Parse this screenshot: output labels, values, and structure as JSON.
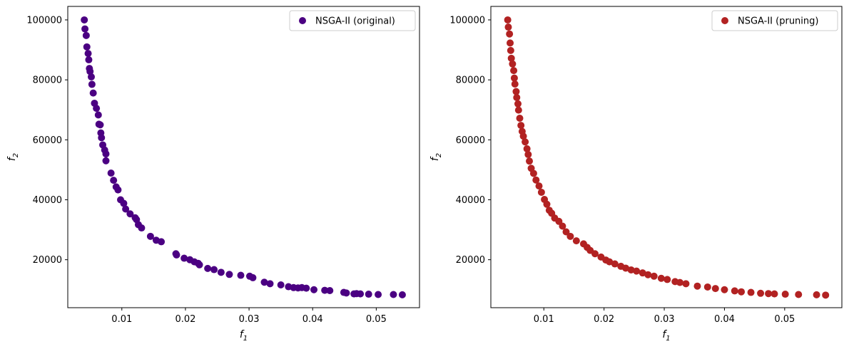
{
  "chart_data": [
    {
      "type": "scatter",
      "title": "",
      "xlabel_base": "f",
      "xlabel_sub": "1",
      "ylabel_base": "f",
      "ylabel_sub": "2",
      "xlim": [
        0.0015,
        0.0568
      ],
      "ylim": [
        4000,
        104500
      ],
      "xticks": [
        0.01,
        0.02,
        0.03,
        0.04,
        0.05
      ],
      "xtick_labels": [
        "0.01",
        "0.02",
        "0.03",
        "0.04",
        "0.05"
      ],
      "yticks": [
        20000,
        40000,
        60000,
        80000,
        100000
      ],
      "ytick_labels": [
        "20000",
        "40000",
        "60000",
        "80000",
        "100000"
      ],
      "legend_position": "top-right",
      "series": [
        {
          "name": "NSGA-II (original)",
          "color": "#4b0082",
          "points": [
            [
              0.0041,
              100000
            ],
            [
              0.0042,
              97000
            ],
            [
              0.0044,
              94800
            ],
            [
              0.0045,
              91000
            ],
            [
              0.0047,
              88800
            ],
            [
              0.0048,
              86700
            ],
            [
              0.0049,
              83800
            ],
            [
              0.005,
              82800
            ],
            [
              0.0052,
              81000
            ],
            [
              0.0053,
              78500
            ],
            [
              0.0055,
              75600
            ],
            [
              0.0057,
              72200
            ],
            [
              0.006,
              70500
            ],
            [
              0.0063,
              68300
            ],
            [
              0.0064,
              65200
            ],
            [
              0.0066,
              65000
            ],
            [
              0.0067,
              62300
            ],
            [
              0.0068,
              60700
            ],
            [
              0.007,
              58300
            ],
            [
              0.0073,
              56600
            ],
            [
              0.0075,
              55300
            ],
            [
              0.0075,
              53000
            ],
            [
              0.0083,
              48900
            ],
            [
              0.0087,
              46500
            ],
            [
              0.0091,
              44300
            ],
            [
              0.0094,
              43300
            ],
            [
              0.0098,
              40000
            ],
            [
              0.0103,
              38800
            ],
            [
              0.0106,
              36900
            ],
            [
              0.0113,
              35300
            ],
            [
              0.0121,
              34000
            ],
            [
              0.0123,
              33400
            ],
            [
              0.0126,
              31700
            ],
            [
              0.0131,
              30600
            ],
            [
              0.0145,
              27800
            ],
            [
              0.0154,
              26500
            ],
            [
              0.0162,
              26000
            ],
            [
              0.0185,
              22000
            ],
            [
              0.0186,
              21600
            ],
            [
              0.0198,
              20500
            ],
            [
              0.0207,
              20000
            ],
            [
              0.0214,
              19300
            ],
            [
              0.022,
              18800
            ],
            [
              0.0222,
              18300
            ],
            [
              0.0235,
              17100
            ],
            [
              0.0245,
              16700
            ],
            [
              0.0256,
              15800
            ],
            [
              0.0269,
              15100
            ],
            [
              0.0287,
              14800
            ],
            [
              0.0301,
              14500
            ],
            [
              0.0306,
              14000
            ],
            [
              0.0324,
              12500
            ],
            [
              0.0333,
              12000
            ],
            [
              0.035,
              11600
            ],
            [
              0.0362,
              11000
            ],
            [
              0.037,
              10700
            ],
            [
              0.0377,
              10600
            ],
            [
              0.0383,
              10700
            ],
            [
              0.039,
              10500
            ],
            [
              0.0402,
              10000
            ],
            [
              0.0419,
              9800
            ],
            [
              0.0427,
              9700
            ],
            [
              0.0449,
              9100
            ],
            [
              0.0453,
              8900
            ],
            [
              0.0465,
              8600
            ],
            [
              0.0469,
              8700
            ],
            [
              0.0475,
              8600
            ],
            [
              0.0488,
              8500
            ],
            [
              0.0503,
              8400
            ],
            [
              0.0527,
              8400
            ],
            [
              0.0541,
              8300
            ]
          ]
        }
      ]
    },
    {
      "type": "scatter",
      "title": "",
      "xlabel_base": "f",
      "xlabel_sub": "1",
      "ylabel_base": "f",
      "ylabel_sub": "2",
      "xlim": [
        0.0012,
        0.0595
      ],
      "ylim": [
        4000,
        104500
      ],
      "xticks": [
        0.01,
        0.02,
        0.03,
        0.04,
        0.05
      ],
      "xtick_labels": [
        "0.01",
        "0.02",
        "0.03",
        "0.04",
        "0.05"
      ],
      "yticks": [
        20000,
        40000,
        60000,
        80000,
        100000
      ],
      "ytick_labels": [
        "20000",
        "40000",
        "60000",
        "80000",
        "100000"
      ],
      "legend_position": "top-right",
      "series": [
        {
          "name": "NSGA-II (pruning)",
          "color": "#b22222",
          "points": [
            [
              0.004,
              100000
            ],
            [
              0.0041,
              97600
            ],
            [
              0.0043,
              95300
            ],
            [
              0.0044,
              92300
            ],
            [
              0.0045,
              89800
            ],
            [
              0.0046,
              87200
            ],
            [
              0.0048,
              85300
            ],
            [
              0.005,
              83100
            ],
            [
              0.0051,
              80600
            ],
            [
              0.0052,
              78600
            ],
            [
              0.0054,
              76100
            ],
            [
              0.0055,
              74100
            ],
            [
              0.0057,
              72000
            ],
            [
              0.0058,
              69900
            ],
            [
              0.006,
              67200
            ],
            [
              0.0062,
              64800
            ],
            [
              0.0064,
              62800
            ],
            [
              0.0066,
              61200
            ],
            [
              0.0069,
              59300
            ],
            [
              0.0072,
              57000
            ],
            [
              0.0074,
              55100
            ],
            [
              0.0076,
              52900
            ],
            [
              0.0079,
              50500
            ],
            [
              0.0083,
              48800
            ],
            [
              0.0087,
              46600
            ],
            [
              0.0092,
              44600
            ],
            [
              0.0096,
              42500
            ],
            [
              0.0101,
              40100
            ],
            [
              0.0105,
              38500
            ],
            [
              0.0109,
              36500
            ],
            [
              0.0113,
              35500
            ],
            [
              0.0118,
              33900
            ],
            [
              0.0125,
              32800
            ],
            [
              0.0131,
              31200
            ],
            [
              0.0137,
              29300
            ],
            [
              0.0144,
              27800
            ],
            [
              0.0154,
              26300
            ],
            [
              0.0166,
              25300
            ],
            [
              0.0172,
              24100
            ],
            [
              0.0177,
              23100
            ],
            [
              0.0185,
              22000
            ],
            [
              0.0195,
              20900
            ],
            [
              0.0203,
              19900
            ],
            [
              0.0209,
              19300
            ],
            [
              0.0218,
              18600
            ],
            [
              0.0228,
              17800
            ],
            [
              0.0236,
              17200
            ],
            [
              0.0245,
              16600
            ],
            [
              0.0254,
              16200
            ],
            [
              0.0264,
              15600
            ],
            [
              0.0273,
              15000
            ],
            [
              0.0283,
              14500
            ],
            [
              0.0295,
              13800
            ],
            [
              0.0305,
              13400
            ],
            [
              0.0318,
              12700
            ],
            [
              0.0326,
              12400
            ],
            [
              0.0336,
              12000
            ],
            [
              0.0355,
              11200
            ],
            [
              0.0372,
              10900
            ],
            [
              0.0385,
              10400
            ],
            [
              0.04,
              10000
            ],
            [
              0.0417,
              9600
            ],
            [
              0.0428,
              9300
            ],
            [
              0.0444,
              9100
            ],
            [
              0.046,
              8800
            ],
            [
              0.0473,
              8700
            ],
            [
              0.0483,
              8600
            ],
            [
              0.0501,
              8500
            ],
            [
              0.0523,
              8400
            ],
            [
              0.0553,
              8300
            ],
            [
              0.0568,
              8200
            ]
          ]
        }
      ]
    }
  ]
}
